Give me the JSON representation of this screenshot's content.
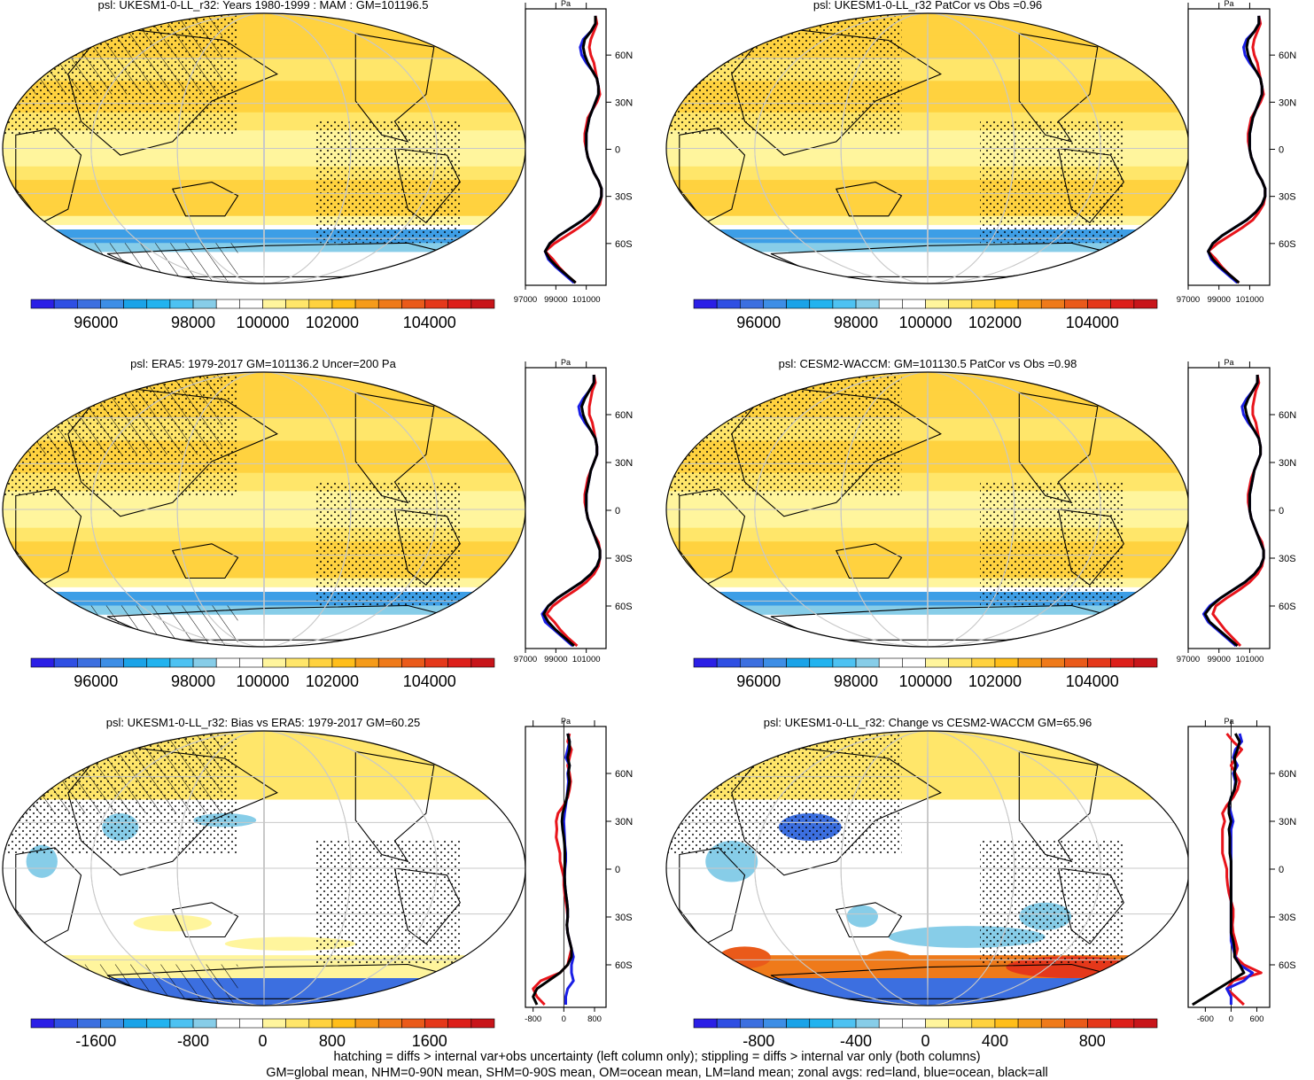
{
  "chart_data": [
    {
      "type": "heatmap",
      "variable": "psl",
      "title": "psl: UKESM1-0-LL_r32: Years 1980-1999 : MAM : GM=101196.5",
      "color_scale": "abs",
      "colorbar_ticks": [
        "96000",
        "98000",
        "100000",
        "102000",
        "104000"
      ],
      "zonal_xticks": [
        "97000",
        "99000",
        "101000"
      ],
      "zonal_unit": "Pa",
      "lat_labels": [
        "60N",
        "30N",
        "0",
        "30S",
        "60S"
      ],
      "hatching": true,
      "stippling": true,
      "zonal_profiles": {
        "lat": [
          85,
          80,
          75,
          70,
          65,
          60,
          55,
          50,
          45,
          40,
          35,
          30,
          25,
          20,
          15,
          10,
          5,
          0,
          -5,
          -10,
          -15,
          -20,
          -25,
          -30,
          -35,
          -40,
          -45,
          -50,
          -55,
          -60,
          -65,
          -70,
          -75,
          -80,
          -85
        ],
        "land": [
          101600,
          101700,
          101500,
          101300,
          101200,
          101300,
          101500,
          101600,
          101700,
          101800,
          101900,
          101700,
          101400,
          101100,
          101000,
          100900,
          100900,
          101000,
          101100,
          101300,
          101500,
          101800,
          102000,
          102000,
          101900,
          101600,
          101200,
          100500,
          99700,
          98900,
          98300,
          98800,
          99200,
          99700,
          100300
        ],
        "ocean": [
          101600,
          101600,
          101300,
          100800,
          100600,
          100700,
          101000,
          101400,
          101700,
          101800,
          101800,
          101600,
          101400,
          101200,
          101100,
          101000,
          101000,
          101000,
          101100,
          101300,
          101500,
          101800,
          102000,
          102000,
          101800,
          101400,
          100800,
          100000,
          99200,
          98600,
          98300,
          98500,
          99000,
          99600,
          100200
        ],
        "all": [
          101600,
          101600,
          101300,
          100900,
          100800,
          100900,
          101100,
          101400,
          101700,
          101800,
          101800,
          101600,
          101400,
          101200,
          101100,
          101000,
          101000,
          101000,
          101100,
          101300,
          101500,
          101800,
          102000,
          102000,
          101800,
          101400,
          100800,
          100000,
          99200,
          98600,
          98300,
          98600,
          99100,
          99700,
          100300
        ]
      }
    },
    {
      "type": "heatmap",
      "variable": "psl",
      "title": "psl: UKESM1-0-LL_r32 PatCor vs Obs =0.96",
      "color_scale": "abs",
      "colorbar_ticks": [
        "96000",
        "98000",
        "100000",
        "102000",
        "104000"
      ],
      "zonal_xticks": [
        "97000",
        "99000",
        "101000"
      ],
      "zonal_unit": "Pa",
      "lat_labels": [
        "60N",
        "30N",
        "0",
        "30S",
        "60S"
      ],
      "hatching": false,
      "stippling": true,
      "zonal_profiles": {
        "lat": [
          85,
          80,
          75,
          70,
          65,
          60,
          55,
          50,
          45,
          40,
          35,
          30,
          25,
          20,
          15,
          10,
          5,
          0,
          -5,
          -10,
          -15,
          -20,
          -25,
          -30,
          -35,
          -40,
          -45,
          -50,
          -55,
          -60,
          -65,
          -70,
          -75,
          -80,
          -85
        ],
        "land": [
          101600,
          101700,
          101500,
          101300,
          101200,
          101300,
          101500,
          101600,
          101700,
          101800,
          101900,
          101700,
          101400,
          101100,
          101000,
          100900,
          100900,
          101000,
          101100,
          101300,
          101500,
          101800,
          102000,
          102000,
          101900,
          101600,
          101200,
          100500,
          99700,
          98900,
          98300,
          98800,
          99200,
          99700,
          100300
        ],
        "ocean": [
          101600,
          101600,
          101300,
          100800,
          100600,
          100700,
          101000,
          101400,
          101700,
          101800,
          101800,
          101600,
          101400,
          101200,
          101100,
          101000,
          101000,
          101000,
          101100,
          101300,
          101500,
          101800,
          102000,
          102000,
          101800,
          101400,
          100800,
          100000,
          99200,
          98600,
          98300,
          98500,
          99000,
          99600,
          100200
        ],
        "all": [
          101600,
          101600,
          101300,
          100900,
          100800,
          100900,
          101100,
          101400,
          101700,
          101800,
          101800,
          101600,
          101400,
          101200,
          101100,
          101000,
          101000,
          101000,
          101100,
          101300,
          101500,
          101800,
          102000,
          102000,
          101800,
          101400,
          100800,
          100000,
          99200,
          98600,
          98300,
          98600,
          99100,
          99700,
          100300
        ]
      }
    },
    {
      "type": "heatmap",
      "variable": "psl",
      "title": "psl: ERA5: 1979-2017 GM=101136.2 Uncer=200 Pa",
      "color_scale": "abs",
      "colorbar_ticks": [
        "96000",
        "98000",
        "100000",
        "102000",
        "104000"
      ],
      "zonal_xticks": [
        "97000",
        "99000",
        "101000"
      ],
      "zonal_unit": "Pa",
      "lat_labels": [
        "60N",
        "30N",
        "0",
        "30S",
        "60S"
      ],
      "hatching": true,
      "stippling": true,
      "zonal_profiles": {
        "lat": [
          85,
          80,
          75,
          70,
          65,
          60,
          55,
          50,
          45,
          40,
          35,
          30,
          25,
          20,
          15,
          10,
          5,
          0,
          -5,
          -10,
          -15,
          -20,
          -25,
          -30,
          -35,
          -40,
          -45,
          -50,
          -55,
          -60,
          -65,
          -70,
          -75,
          -80,
          -85
        ],
        "land": [
          101500,
          101600,
          101400,
          101300,
          101200,
          101200,
          101400,
          101500,
          101600,
          101700,
          101700,
          101500,
          101300,
          101100,
          101000,
          100900,
          100900,
          101000,
          101100,
          101300,
          101500,
          101800,
          101900,
          101900,
          101800,
          101500,
          101000,
          100300,
          99500,
          98800,
          98400,
          98900,
          99300,
          99800,
          100400
        ],
        "ocean": [
          101500,
          101500,
          101200,
          100800,
          100500,
          100600,
          100900,
          101300,
          101600,
          101700,
          101700,
          101500,
          101300,
          101200,
          101100,
          101000,
          101000,
          101000,
          101100,
          101300,
          101500,
          101700,
          101900,
          101900,
          101700,
          101300,
          100700,
          99900,
          99100,
          98500,
          98100,
          98300,
          98900,
          99500,
          100100
        ],
        "all": [
          101500,
          101500,
          101200,
          100900,
          100700,
          100800,
          101000,
          101300,
          101600,
          101700,
          101700,
          101500,
          101300,
          101200,
          101100,
          101000,
          101000,
          101000,
          101100,
          101300,
          101500,
          101700,
          101900,
          101900,
          101700,
          101300,
          100700,
          99900,
          99100,
          98500,
          98200,
          98500,
          99000,
          99600,
          100200
        ]
      }
    },
    {
      "type": "heatmap",
      "variable": "psl",
      "title": "psl: CESM2-WACCM: GM=101130.5 PatCor vs Obs =0.98",
      "color_scale": "abs",
      "colorbar_ticks": [
        "96000",
        "98000",
        "100000",
        "102000",
        "104000"
      ],
      "zonal_xticks": [
        "97000",
        "99000",
        "101000"
      ],
      "zonal_unit": "Pa",
      "lat_labels": [
        "60N",
        "30N",
        "0",
        "30S",
        "60S"
      ],
      "hatching": false,
      "stippling": true,
      "zonal_profiles": {
        "lat": [
          85,
          80,
          75,
          70,
          65,
          60,
          55,
          50,
          45,
          40,
          35,
          30,
          25,
          20,
          15,
          10,
          5,
          0,
          -5,
          -10,
          -15,
          -20,
          -25,
          -30,
          -35,
          -40,
          -45,
          -50,
          -55,
          -60,
          -65,
          -70,
          -75,
          -80,
          -85
        ],
        "land": [
          101500,
          101600,
          101400,
          101300,
          101200,
          101200,
          101400,
          101500,
          101600,
          101700,
          101700,
          101500,
          101300,
          101100,
          101000,
          100900,
          100900,
          101000,
          101100,
          101300,
          101500,
          101800,
          101900,
          101900,
          101800,
          101500,
          101000,
          100300,
          99500,
          98800,
          98600,
          99000,
          99400,
          99900,
          100400
        ],
        "ocean": [
          101500,
          101500,
          101200,
          100800,
          100500,
          100600,
          100900,
          101300,
          101600,
          101700,
          101700,
          101500,
          101300,
          101200,
          101100,
          101000,
          101000,
          101000,
          101100,
          101300,
          101500,
          101700,
          101900,
          101900,
          101700,
          101300,
          100700,
          99900,
          99100,
          98400,
          98000,
          98300,
          98900,
          99500,
          100100
        ],
        "all": [
          101500,
          101500,
          101200,
          100900,
          100700,
          100800,
          101000,
          101300,
          101600,
          101700,
          101700,
          101500,
          101300,
          101200,
          101100,
          101000,
          101000,
          101000,
          101100,
          101300,
          101500,
          101700,
          101900,
          101900,
          101700,
          101300,
          100700,
          99900,
          99100,
          98500,
          98100,
          98400,
          99000,
          99600,
          100200
        ]
      }
    },
    {
      "type": "heatmap",
      "variable": "psl",
      "title": "psl: UKESM1-0-LL_r32: Bias vs ERA5: 1979-2017 GM=60.25",
      "color_scale": "diff",
      "colorbar_ticks": [
        "-1600",
        "-800",
        "0",
        "800",
        "1600"
      ],
      "zonal_xticks": [
        "-800",
        "0",
        "800"
      ],
      "zonal_unit": "Pa",
      "lat_labels": [
        "60N",
        "30N",
        "0",
        "30S",
        "60S"
      ],
      "hatching": true,
      "stippling": true,
      "zonal_profiles": {
        "lat": [
          85,
          80,
          75,
          70,
          65,
          60,
          55,
          50,
          45,
          40,
          35,
          30,
          25,
          20,
          15,
          10,
          5,
          0,
          -5,
          -10,
          -15,
          -20,
          -25,
          -30,
          -35,
          -40,
          -45,
          -50,
          -55,
          -60,
          -65,
          -70,
          -75,
          -80,
          -85
        ],
        "land": [
          150,
          100,
          200,
          150,
          100,
          150,
          180,
          150,
          100,
          0,
          -150,
          -200,
          -180,
          -200,
          -150,
          -100,
          -100,
          -50,
          0,
          0,
          20,
          50,
          80,
          100,
          80,
          100,
          150,
          200,
          150,
          100,
          -100,
          -600,
          -800,
          -700,
          -500
        ],
        "ocean": [
          100,
          150,
          100,
          50,
          150,
          100,
          120,
          100,
          80,
          50,
          20,
          0,
          10,
          20,
          30,
          50,
          50,
          30,
          20,
          30,
          50,
          80,
          100,
          100,
          80,
          100,
          150,
          200,
          250,
          200,
          200,
          250,
          100,
          50,
          50
        ],
        "all": [
          100,
          150,
          150,
          100,
          150,
          120,
          150,
          120,
          80,
          30,
          -30,
          -50,
          -30,
          0,
          20,
          30,
          30,
          20,
          20,
          30,
          50,
          80,
          100,
          100,
          80,
          100,
          150,
          200,
          200,
          100,
          -100,
          -400,
          -700,
          -800,
          -700
        ]
      }
    },
    {
      "type": "heatmap",
      "variable": "psl",
      "title": "psl: UKESM1-0-LL_r32: Change vs CESM2-WACCM GM=65.96",
      "color_scale": "diff_small",
      "colorbar_ticks": [
        "-800",
        "-400",
        "0",
        "400",
        "800"
      ],
      "zonal_xticks": [
        "-600",
        "0",
        "600"
      ],
      "zonal_unit": "Pa",
      "lat_labels": [
        "60N",
        "30N",
        "0",
        "30S",
        "60S"
      ],
      "hatching": false,
      "stippling": true,
      "zonal_profiles": {
        "lat": [
          85,
          80,
          75,
          70,
          65,
          60,
          55,
          50,
          45,
          40,
          35,
          30,
          25,
          20,
          15,
          10,
          5,
          0,
          -5,
          -10,
          -15,
          -20,
          -25,
          -30,
          -35,
          -40,
          -45,
          -50,
          -55,
          -60,
          -65,
          -70,
          -75,
          -80,
          -85
        ],
        "land": [
          -100,
          50,
          250,
          100,
          0,
          100,
          200,
          150,
          50,
          -100,
          -200,
          -150,
          -200,
          -200,
          -200,
          -200,
          -150,
          -100,
          -100,
          -80,
          -50,
          0,
          50,
          50,
          30,
          50,
          100,
          150,
          100,
          300,
          700,
          50,
          -100,
          100,
          300
        ],
        "ocean": [
          200,
          250,
          100,
          50,
          150,
          50,
          100,
          80,
          0,
          -50,
          0,
          50,
          0,
          0,
          0,
          0,
          0,
          0,
          0,
          0,
          0,
          0,
          0,
          0,
          0,
          0,
          0,
          50,
          100,
          200,
          500,
          300,
          -100,
          0,
          0
        ],
        "all": [
          100,
          200,
          150,
          80,
          100,
          80,
          120,
          80,
          0,
          -50,
          -50,
          0,
          -50,
          -30,
          -30,
          -30,
          0,
          0,
          0,
          0,
          0,
          0,
          0,
          0,
          0,
          0,
          50,
          80,
          80,
          200,
          300,
          0,
          -300,
          -600,
          -900
        ]
      }
    }
  ],
  "footer": {
    "line1": "hatching = diffs > internal var+obs uncertainty (left column only); stippling = diffs > internal var only (both columns)",
    "line2": "GM=global mean, NHM=0-90N mean, SHM=0-90S mean, OM=ocean mean, LM=land mean; zonal avgs: red=land, blue=ocean, black=all"
  },
  "colors": {
    "land_line": "#e8141b",
    "ocean_line": "#1a1ee6",
    "all_line": "#000000",
    "graticule": "#c8c8c8",
    "palette": [
      "#2b1fe6",
      "#2f4fe3",
      "#3c6fe0",
      "#3d8ee6",
      "#1aa3e8",
      "#22b3ef",
      "#4dc2f2",
      "#87cde8",
      "#ffffff",
      "#ffffff",
      "#fff59d",
      "#ffe66a",
      "#ffd23f",
      "#ffbe1a",
      "#f59b1a",
      "#ef7a1a",
      "#ea5a1a",
      "#e5381a",
      "#dd1f1a",
      "#c8151a"
    ]
  }
}
